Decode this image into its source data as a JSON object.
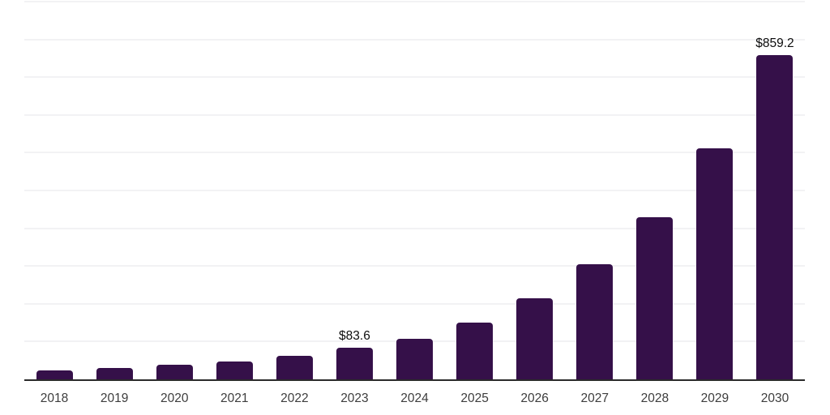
{
  "chart_data": {
    "type": "bar",
    "title": "",
    "xlabel": "",
    "ylabel": "",
    "categories": [
      "2018",
      "2019",
      "2020",
      "2021",
      "2022",
      "2023",
      "2024",
      "2025",
      "2026",
      "2027",
      "2028",
      "2029",
      "2030"
    ],
    "values": [
      24,
      31,
      38,
      48,
      62,
      83.6,
      108,
      150,
      214,
      304,
      430,
      612,
      859.2
    ],
    "data_labels": {
      "2023": "$83.6",
      "2030": "$859.2"
    },
    "ylim": [
      0,
      1000
    ],
    "gridline_interval": 100,
    "grid": true,
    "legend": false,
    "colors": {
      "bar": "#351049",
      "axis": "#2b2b2b",
      "gridline": "#f2f2f4",
      "tick_label": "#3d3d3d",
      "data_label": "#0d0d0d",
      "background": "#ffffff"
    }
  }
}
